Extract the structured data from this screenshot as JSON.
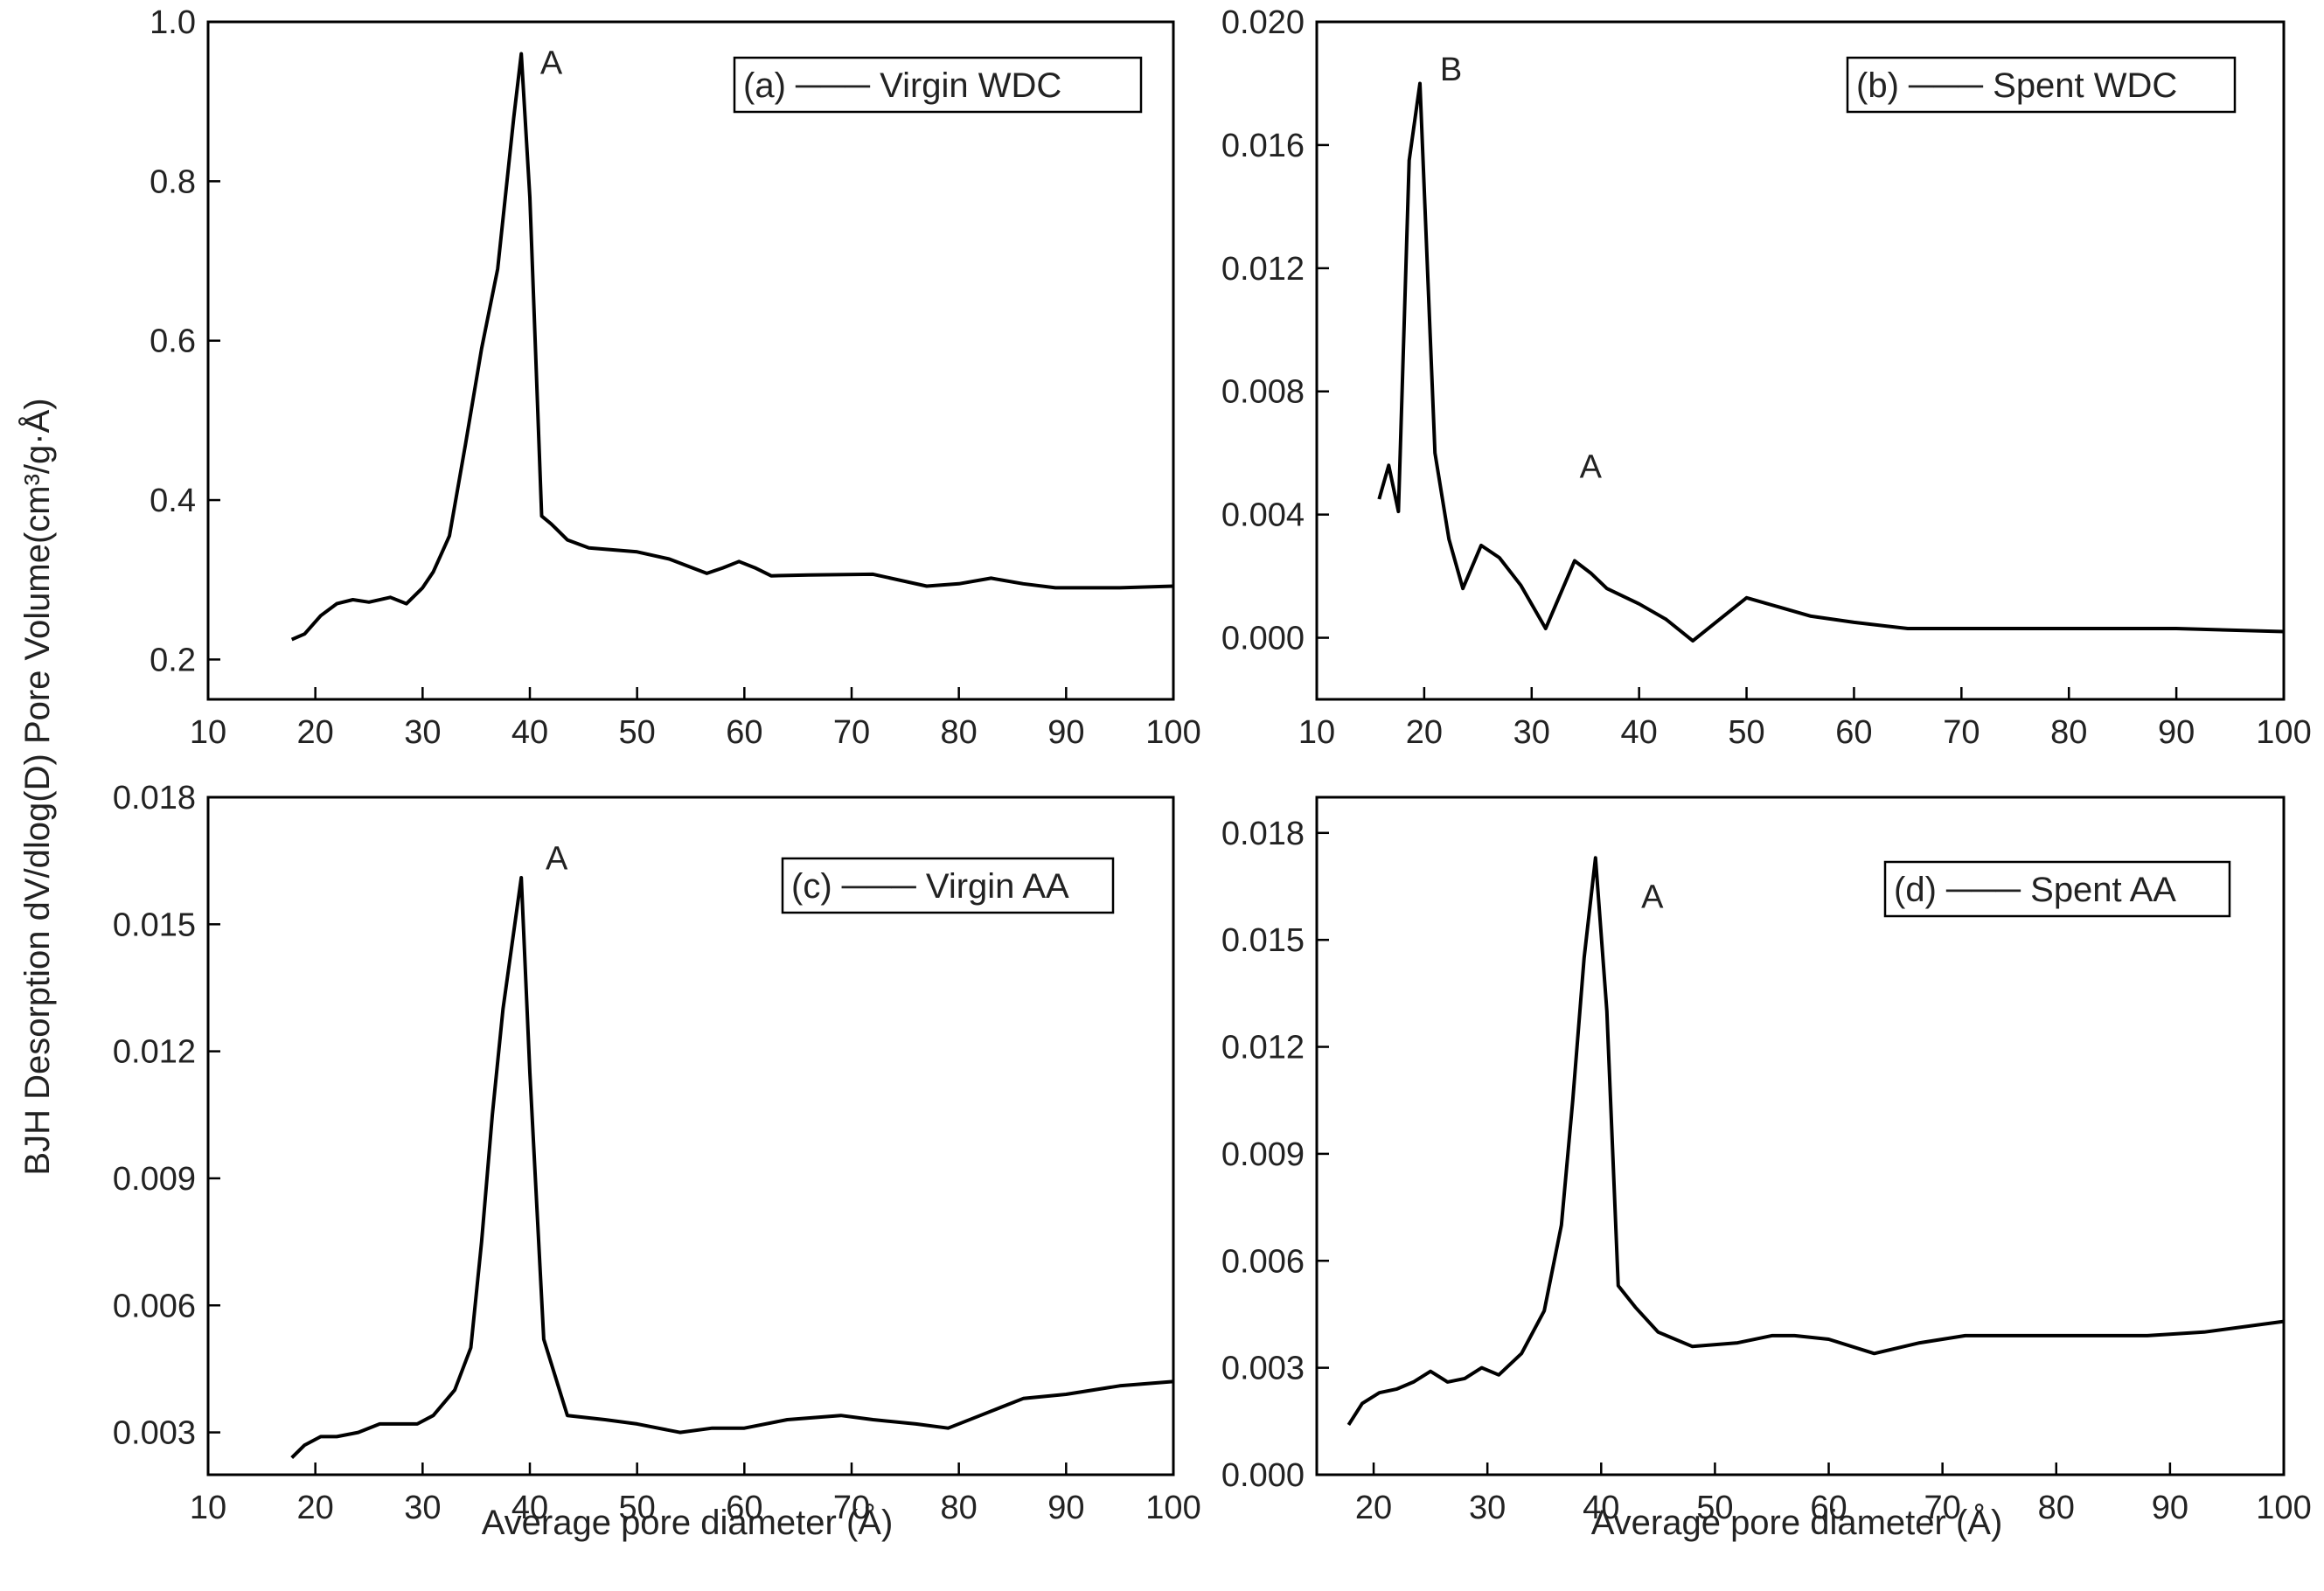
{
  "shared": {
    "ylabel": "BJH Desorption dV/dlog(D) Pore Volume(cm³/g·Å)",
    "xlabel": "Average pore diameter (Å)"
  },
  "chart_data": [
    {
      "id": "a",
      "type": "line",
      "xlim": [
        10,
        100
      ],
      "ylim": [
        0.15,
        1.0
      ],
      "xticks": [
        10,
        20,
        30,
        40,
        50,
        60,
        70,
        80,
        90,
        100
      ],
      "yticks": [
        0.2,
        0.4,
        0.6,
        0.8,
        1.0
      ],
      "ytick_labels": [
        "0.2",
        "0.4",
        "0.6",
        "0.8",
        "1.0"
      ],
      "legend": "(a) ─── Virgin WDC",
      "series": [
        {
          "name": "Virgin WDC",
          "x": [
            17.8,
            19,
            20.5,
            22,
            23.5,
            25,
            27,
            28.5,
            30,
            31,
            32.5,
            34,
            35.5,
            37,
            38.5,
            39.2,
            40,
            41.1,
            42,
            43.5,
            45.5,
            50,
            53,
            56.5,
            58,
            59.5,
            61,
            62.5,
            66,
            72,
            77,
            80,
            83,
            86,
            89,
            95,
            100
          ],
          "y": [
            0.225,
            0.232,
            0.255,
            0.27,
            0.275,
            0.272,
            0.278,
            0.27,
            0.29,
            0.31,
            0.355,
            0.47,
            0.59,
            0.69,
            0.88,
            0.96,
            0.78,
            0.38,
            0.37,
            0.35,
            0.34,
            0.335,
            0.326,
            0.308,
            0.315,
            0.323,
            0.315,
            0.305,
            0.306,
            0.307,
            0.292,
            0.295,
            0.302,
            0.295,
            0.29,
            0.29,
            0.292
          ]
        }
      ],
      "annotations": [
        {
          "text": "A",
          "x": 42,
          "y": 0.935
        }
      ]
    },
    {
      "id": "b",
      "type": "line",
      "xlim": [
        10,
        100
      ],
      "ylim": [
        -0.002,
        0.02
      ],
      "xticks": [
        10,
        20,
        30,
        40,
        50,
        60,
        70,
        80,
        90,
        100
      ],
      "yticks": [
        0.0,
        0.004,
        0.008,
        0.012,
        0.016,
        0.02
      ],
      "ytick_labels": [
        "0.000",
        "0.004",
        "0.008",
        "0.012",
        "0.016",
        "0.020"
      ],
      "legend": "(b) ─── Spent WDC",
      "series": [
        {
          "name": "Spent WDC",
          "x": [
            15.8,
            16.7,
            17.6,
            18.6,
            19.6,
            21.0,
            22.3,
            23.6,
            25.3,
            27,
            29,
            31.3,
            34,
            35.5,
            37,
            40,
            42.5,
            45,
            47.5,
            50,
            53,
            56,
            60,
            65,
            70,
            80,
            90,
            100
          ],
          "y": [
            0.0045,
            0.0056,
            0.0041,
            0.0155,
            0.018,
            0.006,
            0.0032,
            0.0016,
            0.003,
            0.0026,
            0.0017,
            0.0003,
            0.0025,
            0.0021,
            0.0016,
            0.0011,
            0.0006,
            -0.0001,
            0.0006,
            0.0013,
            0.001,
            0.0007,
            0.0005,
            0.0003,
            0.0003,
            0.0003,
            0.0003,
            0.0002
          ]
        }
      ],
      "annotations": [
        {
          "text": "B",
          "x": 22.5,
          "y": 0.0181
        },
        {
          "text": "A",
          "x": 35.5,
          "y": 0.0052
        }
      ]
    },
    {
      "id": "c",
      "type": "line",
      "xlim": [
        10,
        100
      ],
      "ylim": [
        0.002,
        0.018
      ],
      "xticks": [
        10,
        20,
        30,
        40,
        50,
        60,
        70,
        80,
        90,
        100
      ],
      "yticks": [
        0.003,
        0.006,
        0.009,
        0.012,
        0.015,
        0.018
      ],
      "ytick_labels": [
        "0.003",
        "0.006",
        "0.009",
        "0.012",
        "0.015",
        "0.018"
      ],
      "legend": "(c) ─── Virgin AA",
      "series": [
        {
          "name": "Virgin AA",
          "x": [
            17.8,
            19,
            20.5,
            22,
            24,
            26,
            28,
            29.5,
            31,
            33,
            34.5,
            35.5,
            36.5,
            37.5,
            39.2,
            40,
            41.3,
            43.5,
            47,
            50,
            54,
            57,
            60,
            64,
            69,
            72,
            76,
            79,
            82,
            86,
            90,
            95,
            100
          ],
          "y": [
            0.0024,
            0.0027,
            0.0029,
            0.0029,
            0.003,
            0.0032,
            0.0032,
            0.0032,
            0.0034,
            0.004,
            0.005,
            0.0075,
            0.0105,
            0.013,
            0.0161,
            0.0115,
            0.0052,
            0.0034,
            0.0033,
            0.0032,
            0.003,
            0.0031,
            0.0031,
            0.0033,
            0.0034,
            0.0033,
            0.0032,
            0.0031,
            0.0034,
            0.0038,
            0.0039,
            0.0041,
            0.0042
          ]
        }
      ],
      "annotations": [
        {
          "text": "A",
          "x": 42.5,
          "y": 0.0163
        }
      ]
    },
    {
      "id": "d",
      "type": "line",
      "xlim": [
        15,
        100
      ],
      "ylim": [
        0.0,
        0.019
      ],
      "xticks": [
        20,
        30,
        40,
        50,
        60,
        70,
        80,
        90,
        100
      ],
      "yticks": [
        0.0,
        0.003,
        0.006,
        0.009,
        0.012,
        0.015,
        0.018
      ],
      "ytick_labels": [
        "0.000",
        "0.003",
        "0.006",
        "0.009",
        "0.012",
        "0.015",
        "0.018"
      ],
      "legend": "(d) ─── Spent AA",
      "series": [
        {
          "name": "Spent AA",
          "x": [
            17.8,
            19,
            20.5,
            22,
            23.5,
            25,
            26.5,
            28,
            29.5,
            31,
            33,
            35,
            36.5,
            37.5,
            38.5,
            39.5,
            40.5,
            41.5,
            43,
            45,
            48,
            52,
            55,
            57,
            60,
            64,
            68,
            72,
            80,
            88,
            93,
            100
          ],
          "y": [
            0.0014,
            0.002,
            0.0023,
            0.0024,
            0.0026,
            0.0029,
            0.0026,
            0.0027,
            0.003,
            0.0028,
            0.0034,
            0.0046,
            0.007,
            0.0105,
            0.0145,
            0.0173,
            0.013,
            0.0053,
            0.0047,
            0.004,
            0.0036,
            0.0037,
            0.0039,
            0.0039,
            0.0038,
            0.0034,
            0.0037,
            0.0039,
            0.0039,
            0.0039,
            0.004,
            0.0043
          ]
        }
      ],
      "annotations": [
        {
          "text": "A",
          "x": 44.5,
          "y": 0.0159
        }
      ]
    }
  ]
}
